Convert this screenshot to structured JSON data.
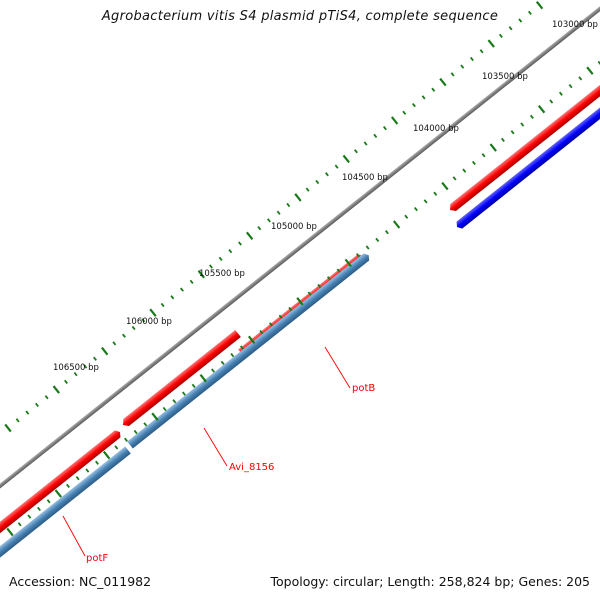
{
  "title": "Agrobacterium vitis S4 plasmid pTiS4, complete sequence",
  "footer": {
    "accession": "Accession: NC_011982",
    "summary": "Topology: circular; Length: 258,824 bp; Genes: 205"
  },
  "ticks": [
    {
      "label": "103000 bp"
    },
    {
      "label": "103500 bp"
    },
    {
      "label": "104000 bp"
    },
    {
      "label": "104500 bp"
    },
    {
      "label": "105000 bp"
    },
    {
      "label": "105500 bp"
    },
    {
      "label": "106000 bp"
    },
    {
      "label": "106500 bp"
    }
  ],
  "genes": [
    {
      "label": "potB"
    },
    {
      "label": "Avi_8156"
    },
    {
      "label": "potF"
    }
  ],
  "colors": {
    "backbone": "#7f7f7f",
    "forward_feature": "#ff0000",
    "reverse_feature": "#4682b4",
    "reverse_feature_alt": "#0000ff",
    "tick": "#1a7a1a",
    "gene_label": "#ff0000"
  }
}
